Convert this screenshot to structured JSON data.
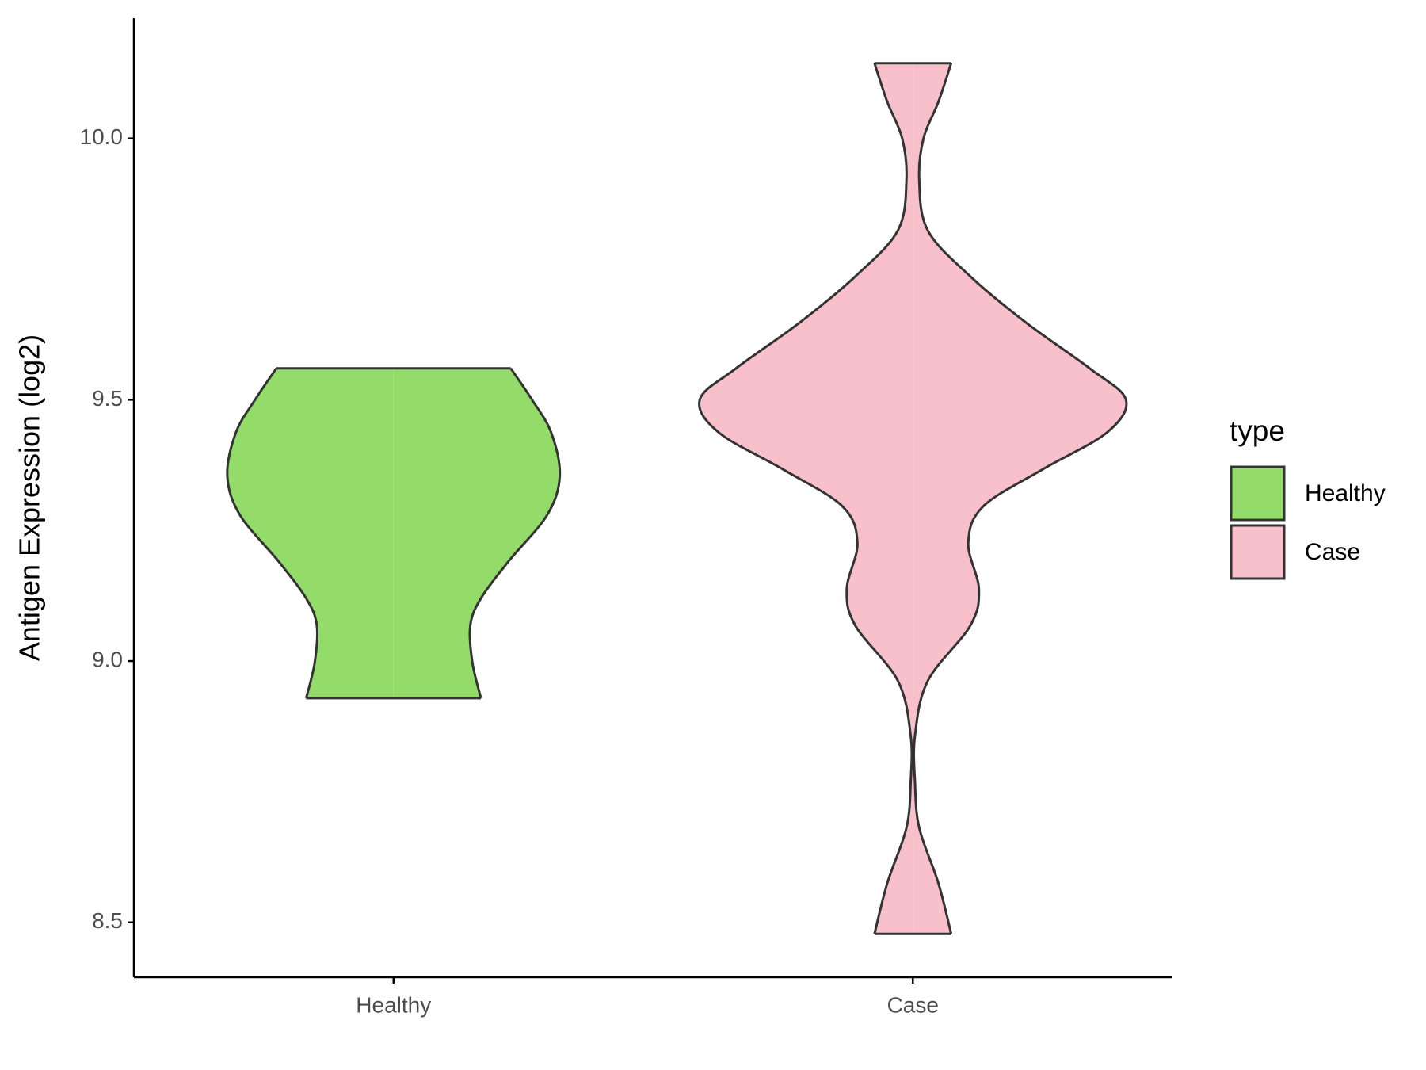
{
  "chart_data": {
    "type": "violin",
    "ylabel": "Antigen Expression (log2)",
    "categories": [
      "Healthy",
      "Case"
    ],
    "ylim": [
      8.395,
      10.23
    ],
    "yticks": [
      {
        "value": 8.5,
        "label": "8.5"
      },
      {
        "value": 9,
        "label": "9.0"
      },
      {
        "value": 9.5,
        "label": "9.5"
      },
      {
        "value": 10,
        "label": "10.0"
      }
    ],
    "legend_title": "type",
    "legend_position": "right",
    "grid": false,
    "series": [
      {
        "name": "Healthy",
        "color": "#93dc6a",
        "y": [
          9.56,
          9.5,
          9.437,
          9.354,
          9.279,
          9.191,
          9.12,
          9.068,
          8.997,
          8.929
        ],
        "density": [
          0.55,
          0.65,
          0.74,
          0.78,
          0.72,
          0.54,
          0.41,
          0.36,
          0.37,
          0.41
        ]
      },
      {
        "name": "Case",
        "color": "#f7c0cb",
        "y": [
          10.144,
          10.07,
          10,
          9.921,
          9.824,
          9.736,
          9.648,
          9.56,
          9.5,
          9.437,
          9.367,
          9.296,
          9.226,
          9.138,
          9.068,
          8.962,
          8.857,
          8.769,
          8.681,
          8.575,
          8.478
        ],
        "density": [
          0.18,
          0.12,
          0.05,
          0.03,
          0.07,
          0.27,
          0.53,
          0.83,
          1.0,
          0.91,
          0.61,
          0.33,
          0.26,
          0.31,
          0.27,
          0.07,
          0.01,
          0.01,
          0.03,
          0.12,
          0.18
        ]
      }
    ]
  }
}
